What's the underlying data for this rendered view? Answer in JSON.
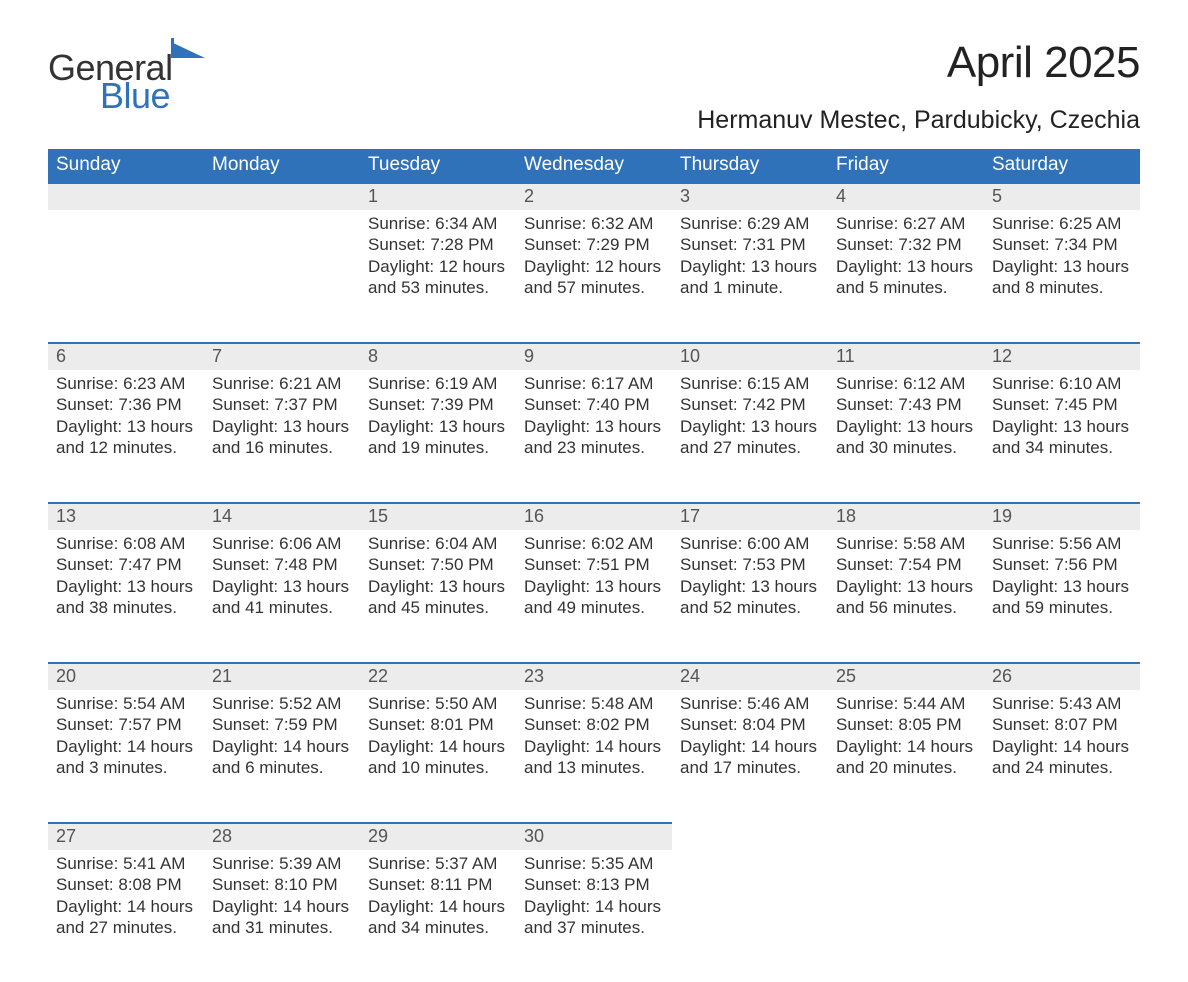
{
  "logo": {
    "text1": "General",
    "text2": "Blue",
    "accent_color": "#2f72b9"
  },
  "title": "April 2025",
  "location": "Hermanuv Mestec, Pardubicky, Czechia",
  "colors": {
    "header_bg": "#2f72b9",
    "header_text": "#ffffff",
    "daynum_bg": "#ececec",
    "daynum_border": "#2f72b9",
    "text": "#333333",
    "background": "#ffffff"
  },
  "weekdays": [
    "Sunday",
    "Monday",
    "Tuesday",
    "Wednesday",
    "Thursday",
    "Friday",
    "Saturday"
  ],
  "weeks": [
    [
      null,
      null,
      {
        "n": "1",
        "sunrise": "Sunrise: 6:34 AM",
        "sunset": "Sunset: 7:28 PM",
        "day1": "Daylight: 12 hours",
        "day2": "and 53 minutes."
      },
      {
        "n": "2",
        "sunrise": "Sunrise: 6:32 AM",
        "sunset": "Sunset: 7:29 PM",
        "day1": "Daylight: 12 hours",
        "day2": "and 57 minutes."
      },
      {
        "n": "3",
        "sunrise": "Sunrise: 6:29 AM",
        "sunset": "Sunset: 7:31 PM",
        "day1": "Daylight: 13 hours",
        "day2": "and 1 minute."
      },
      {
        "n": "4",
        "sunrise": "Sunrise: 6:27 AM",
        "sunset": "Sunset: 7:32 PM",
        "day1": "Daylight: 13 hours",
        "day2": "and 5 minutes."
      },
      {
        "n": "5",
        "sunrise": "Sunrise: 6:25 AM",
        "sunset": "Sunset: 7:34 PM",
        "day1": "Daylight: 13 hours",
        "day2": "and 8 minutes."
      }
    ],
    [
      {
        "n": "6",
        "sunrise": "Sunrise: 6:23 AM",
        "sunset": "Sunset: 7:36 PM",
        "day1": "Daylight: 13 hours",
        "day2": "and 12 minutes."
      },
      {
        "n": "7",
        "sunrise": "Sunrise: 6:21 AM",
        "sunset": "Sunset: 7:37 PM",
        "day1": "Daylight: 13 hours",
        "day2": "and 16 minutes."
      },
      {
        "n": "8",
        "sunrise": "Sunrise: 6:19 AM",
        "sunset": "Sunset: 7:39 PM",
        "day1": "Daylight: 13 hours",
        "day2": "and 19 minutes."
      },
      {
        "n": "9",
        "sunrise": "Sunrise: 6:17 AM",
        "sunset": "Sunset: 7:40 PM",
        "day1": "Daylight: 13 hours",
        "day2": "and 23 minutes."
      },
      {
        "n": "10",
        "sunrise": "Sunrise: 6:15 AM",
        "sunset": "Sunset: 7:42 PM",
        "day1": "Daylight: 13 hours",
        "day2": "and 27 minutes."
      },
      {
        "n": "11",
        "sunrise": "Sunrise: 6:12 AM",
        "sunset": "Sunset: 7:43 PM",
        "day1": "Daylight: 13 hours",
        "day2": "and 30 minutes."
      },
      {
        "n": "12",
        "sunrise": "Sunrise: 6:10 AM",
        "sunset": "Sunset: 7:45 PM",
        "day1": "Daylight: 13 hours",
        "day2": "and 34 minutes."
      }
    ],
    [
      {
        "n": "13",
        "sunrise": "Sunrise: 6:08 AM",
        "sunset": "Sunset: 7:47 PM",
        "day1": "Daylight: 13 hours",
        "day2": "and 38 minutes."
      },
      {
        "n": "14",
        "sunrise": "Sunrise: 6:06 AM",
        "sunset": "Sunset: 7:48 PM",
        "day1": "Daylight: 13 hours",
        "day2": "and 41 minutes."
      },
      {
        "n": "15",
        "sunrise": "Sunrise: 6:04 AM",
        "sunset": "Sunset: 7:50 PM",
        "day1": "Daylight: 13 hours",
        "day2": "and 45 minutes."
      },
      {
        "n": "16",
        "sunrise": "Sunrise: 6:02 AM",
        "sunset": "Sunset: 7:51 PM",
        "day1": "Daylight: 13 hours",
        "day2": "and 49 minutes."
      },
      {
        "n": "17",
        "sunrise": "Sunrise: 6:00 AM",
        "sunset": "Sunset: 7:53 PM",
        "day1": "Daylight: 13 hours",
        "day2": "and 52 minutes."
      },
      {
        "n": "18",
        "sunrise": "Sunrise: 5:58 AM",
        "sunset": "Sunset: 7:54 PM",
        "day1": "Daylight: 13 hours",
        "day2": "and 56 minutes."
      },
      {
        "n": "19",
        "sunrise": "Sunrise: 5:56 AM",
        "sunset": "Sunset: 7:56 PM",
        "day1": "Daylight: 13 hours",
        "day2": "and 59 minutes."
      }
    ],
    [
      {
        "n": "20",
        "sunrise": "Sunrise: 5:54 AM",
        "sunset": "Sunset: 7:57 PM",
        "day1": "Daylight: 14 hours",
        "day2": "and 3 minutes."
      },
      {
        "n": "21",
        "sunrise": "Sunrise: 5:52 AM",
        "sunset": "Sunset: 7:59 PM",
        "day1": "Daylight: 14 hours",
        "day2": "and 6 minutes."
      },
      {
        "n": "22",
        "sunrise": "Sunrise: 5:50 AM",
        "sunset": "Sunset: 8:01 PM",
        "day1": "Daylight: 14 hours",
        "day2": "and 10 minutes."
      },
      {
        "n": "23",
        "sunrise": "Sunrise: 5:48 AM",
        "sunset": "Sunset: 8:02 PM",
        "day1": "Daylight: 14 hours",
        "day2": "and 13 minutes."
      },
      {
        "n": "24",
        "sunrise": "Sunrise: 5:46 AM",
        "sunset": "Sunset: 8:04 PM",
        "day1": "Daylight: 14 hours",
        "day2": "and 17 minutes."
      },
      {
        "n": "25",
        "sunrise": "Sunrise: 5:44 AM",
        "sunset": "Sunset: 8:05 PM",
        "day1": "Daylight: 14 hours",
        "day2": "and 20 minutes."
      },
      {
        "n": "26",
        "sunrise": "Sunrise: 5:43 AM",
        "sunset": "Sunset: 8:07 PM",
        "day1": "Daylight: 14 hours",
        "day2": "and 24 minutes."
      }
    ],
    [
      {
        "n": "27",
        "sunrise": "Sunrise: 5:41 AM",
        "sunset": "Sunset: 8:08 PM",
        "day1": "Daylight: 14 hours",
        "day2": "and 27 minutes."
      },
      {
        "n": "28",
        "sunrise": "Sunrise: 5:39 AM",
        "sunset": "Sunset: 8:10 PM",
        "day1": "Daylight: 14 hours",
        "day2": "and 31 minutes."
      },
      {
        "n": "29",
        "sunrise": "Sunrise: 5:37 AM",
        "sunset": "Sunset: 8:11 PM",
        "day1": "Daylight: 14 hours",
        "day2": "and 34 minutes."
      },
      {
        "n": "30",
        "sunrise": "Sunrise: 5:35 AM",
        "sunset": "Sunset: 8:13 PM",
        "day1": "Daylight: 14 hours",
        "day2": "and 37 minutes."
      },
      null,
      null,
      null
    ]
  ]
}
